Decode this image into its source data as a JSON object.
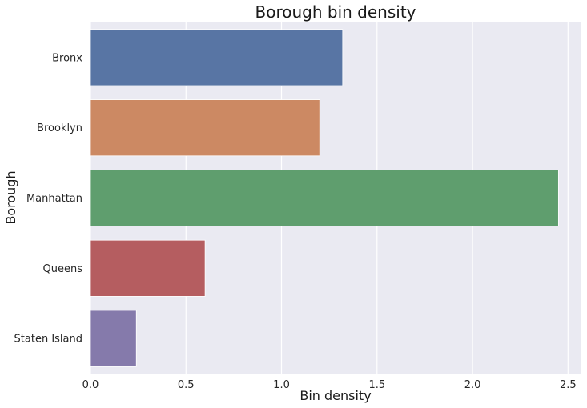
{
  "chart_data": {
    "type": "bar",
    "orientation": "horizontal",
    "title": "Borough bin density",
    "xlabel": "Bin density",
    "ylabel": "Borough",
    "categories": [
      "Bronx",
      "Brooklyn",
      "Manhattan",
      "Queens",
      "Staten Island"
    ],
    "values": [
      1.32,
      1.2,
      2.45,
      0.6,
      0.24
    ],
    "xlim": [
      0,
      2.57
    ],
    "xticks": [
      0.0,
      0.5,
      1.0,
      1.5,
      2.0,
      2.5
    ],
    "xtick_labels": [
      "0.0",
      "0.5",
      "1.0",
      "1.5",
      "2.0",
      "2.5"
    ],
    "grid": true,
    "background_color": "#eaeaf2",
    "bar_colors": [
      "#5875a4",
      "#cc8963",
      "#5f9e6e",
      "#b55d60",
      "#857aab"
    ]
  }
}
